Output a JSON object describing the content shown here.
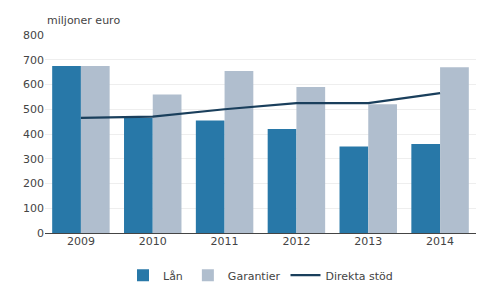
{
  "chart_data": {
    "type": "bar",
    "ylabel": "miljoner euro",
    "categories": [
      "2009",
      "2010",
      "2011",
      "2012",
      "2013",
      "2014"
    ],
    "series": [
      {
        "name": "Lån",
        "type": "bar",
        "color": "#2878a8",
        "values": [
          675,
          465,
          455,
          420,
          350,
          360
        ]
      },
      {
        "name": "Garantier",
        "type": "bar",
        "color": "#b0bece",
        "values": [
          675,
          560,
          655,
          590,
          520,
          670
        ]
      },
      {
        "name": "Direkta stöd",
        "type": "line",
        "color": "#1a3f5c",
        "values": [
          465,
          470,
          500,
          525,
          525,
          565
        ]
      }
    ],
    "ylim": [
      0,
      800
    ],
    "yticks": [
      0,
      100,
      200,
      300,
      400,
      500,
      600,
      700,
      800
    ],
    "grid": true,
    "legend": "bottom"
  }
}
